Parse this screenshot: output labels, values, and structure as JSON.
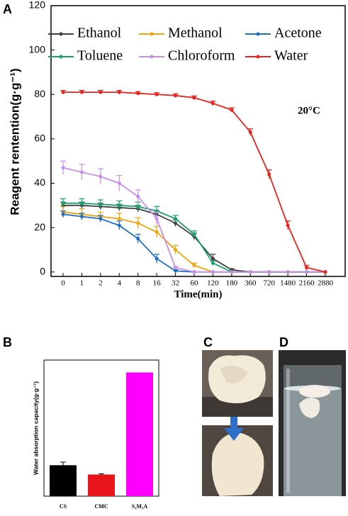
{
  "chart_data": [
    {
      "type": "line",
      "ylabel": "Reagent rentention(g·g⁻¹)",
      "xlabel": "Time(min)",
      "annotation": "20°C",
      "categories": [
        "0",
        "1",
        "2",
        "4",
        "8",
        "16",
        "32",
        "60",
        "120",
        "180",
        "360",
        "720",
        "1480",
        "2160",
        "2880"
      ],
      "ylim": [
        -2,
        120
      ],
      "yticks": [
        0,
        20,
        40,
        60,
        80,
        100,
        120
      ],
      "legend": "top",
      "series": [
        {
          "name": "Ethanol",
          "color": "#404040",
          "values": [
            30,
            30,
            29.5,
            29,
            28.5,
            26,
            22,
            16,
            6,
            1,
            0,
            0,
            0,
            0,
            0
          ],
          "errors": [
            1.5,
            1.5,
            1.5,
            1.5,
            1.5,
            1.5,
            1.5,
            1.5,
            2,
            0.5,
            0,
            0,
            0,
            0,
            0
          ]
        },
        {
          "name": "Methanol",
          "color": "#f0a30a",
          "values": [
            27,
            26,
            25,
            24,
            22,
            18,
            10,
            3,
            0,
            0,
            0,
            0,
            0,
            0,
            0
          ],
          "errors": [
            2.5,
            2.5,
            2,
            2.5,
            2.5,
            2.5,
            2,
            1,
            0,
            0,
            0,
            0,
            0,
            0,
            0
          ]
        },
        {
          "name": "Acetone",
          "color": "#1f6fc6",
          "values": [
            26,
            25,
            24,
            21,
            15,
            6,
            0.5,
            0,
            0,
            0,
            0,
            0,
            0,
            0,
            0
          ],
          "errors": [
            1.5,
            1.5,
            1.5,
            2,
            2,
            2,
            0.5,
            0,
            0,
            0,
            0,
            0,
            0,
            0,
            0
          ]
        },
        {
          "name": "Toluene",
          "color": "#1aa06e",
          "values": [
            31,
            31,
            30.5,
            30,
            29.5,
            27.5,
            24,
            17,
            4,
            0,
            0,
            0,
            0,
            0,
            0
          ],
          "errors": [
            2,
            2,
            2,
            2,
            2,
            2,
            1.5,
            1.5,
            1,
            0,
            0,
            0,
            0,
            0,
            0
          ]
        },
        {
          "name": "Chloroform",
          "color": "#c88ee8",
          "values": [
            47,
            45,
            43,
            40,
            34,
            24,
            2,
            0,
            0,
            0,
            0,
            0,
            0,
            0,
            0
          ],
          "errors": [
            3,
            3.5,
            3.5,
            3.5,
            3,
            3,
            0.5,
            0,
            0,
            0,
            0,
            0,
            0,
            0,
            0
          ]
        },
        {
          "name": "Water",
          "color": "#e8231e",
          "values": [
            81,
            81,
            81,
            81,
            80.5,
            80,
            79.5,
            78.5,
            76,
            73,
            63,
            44,
            21,
            2,
            0
          ],
          "errors": [
            0.8,
            0.8,
            0.8,
            0.8,
            0.8,
            0.8,
            0.8,
            0.8,
            1,
            1,
            1.5,
            2,
            2,
            1,
            0
          ]
        }
      ]
    },
    {
      "type": "bar",
      "ylabel": "Water absorption capacity(g·g⁻¹)",
      "categories": [
        "CS",
        "CMC",
        "S₁M₁A"
      ],
      "values": [
        20,
        14,
        80
      ],
      "errors": [
        2,
        0.5,
        0
      ],
      "colors": [
        "#000000",
        "#e8151b",
        "#ff00ff"
      ],
      "ylim": [
        0,
        88
      ]
    }
  ],
  "panel_labels": [
    "A",
    "B",
    "C",
    "D"
  ]
}
